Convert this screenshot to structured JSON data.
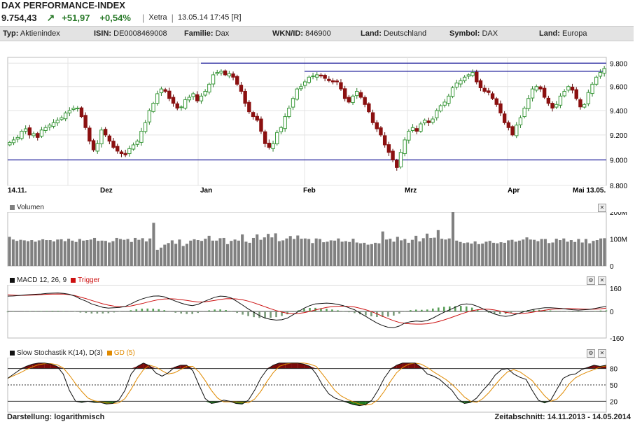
{
  "header": {
    "title": "DAX PERFORMANCE-INDEX",
    "last": "9.754,43",
    "change": "+51,97",
    "change_pct": "+0,54%",
    "exchange": "Xetra",
    "timestamp": "13.05.14 17:45 [R]"
  },
  "info": {
    "typ_label": "Typ:",
    "typ_value": "Aktienindex",
    "isin_label": "ISIN:",
    "isin_value": "DE0008469008",
    "familie_label": "Familie:",
    "familie_value": "Dax",
    "wkn_label": "WKN/ID:",
    "wkn_value": "846900",
    "land_label": "Land:",
    "land_value": "Deutschland",
    "symbol_label": "Symbol:",
    "symbol_value": "DAX",
    "land2_label": "Land:",
    "land2_value": "Europa"
  },
  "colors": {
    "up": "#3a9a3a",
    "down": "#8b1010",
    "hline": "#1c1c9a",
    "volume": "#808080",
    "macd": "#111111",
    "trigger": "#cc1010",
    "k": "#111111",
    "d": "#e08a00"
  },
  "panels": {
    "volume_title": "Volumen",
    "macd_title": "MACD 12, 26, 9",
    "trigger_title": "Trigger",
    "stoch_title": "Slow Stochastik K(14), D(3)",
    "gd_title": "GD (5)"
  },
  "footer": {
    "left": "Darstellung: logarithmisch",
    "right": "Zeitabschnitt: 14.11.2013 - 14.05.2014"
  },
  "chart_data": [
    {
      "type": "candlestick",
      "x_labels": [
        "14.11.",
        "Dez",
        "Jan",
        "Feb",
        "Mrz",
        "Apr",
        "Mai 13.05."
      ],
      "y_ticks": [
        "9.800",
        "9.600",
        "9.400",
        "9.200",
        "9.000",
        "8.800"
      ],
      "ylim": [
        8800,
        9850
      ],
      "scale": "log",
      "hlines": [
        9000,
        9730,
        9800
      ],
      "close": [
        9140,
        9160,
        9180,
        9230,
        9250,
        9200,
        9210,
        9180,
        9240,
        9260,
        9280,
        9300,
        9320,
        9340,
        9380,
        9400,
        9420,
        9420,
        9350,
        9260,
        9150,
        9080,
        9130,
        9240,
        9200,
        9150,
        9100,
        9070,
        9050,
        9040,
        9090,
        9120,
        9150,
        9230,
        9300,
        9400,
        9460,
        9540,
        9580,
        9560,
        9500,
        9460,
        9420,
        9430,
        9490,
        9510,
        9540,
        9480,
        9520,
        9560,
        9620,
        9700,
        9720,
        9730,
        9700,
        9710,
        9680,
        9620,
        9560,
        9460,
        9390,
        9350,
        9320,
        9230,
        9130,
        9100,
        9130,
        9220,
        9260,
        9350,
        9420,
        9500,
        9580,
        9600,
        9640,
        9680,
        9690,
        9700,
        9690,
        9670,
        9650,
        9640,
        9640,
        9580,
        9500,
        9470,
        9520,
        9560,
        9510,
        9450,
        9390,
        9300,
        9250,
        9200,
        9120,
        9060,
        9000,
        8940,
        9060,
        9160,
        9230,
        9260,
        9230,
        9290,
        9320,
        9300,
        9330,
        9400,
        9440,
        9470,
        9520,
        9590,
        9630,
        9650,
        9680,
        9700,
        9720,
        9640,
        9590,
        9560,
        9550,
        9500,
        9450,
        9380,
        9300,
        9260,
        9200,
        9280,
        9340,
        9420,
        9500,
        9580,
        9600,
        9580,
        9510,
        9460,
        9420,
        9450,
        9520,
        9560,
        9600,
        9570,
        9500,
        9430,
        9450,
        9550,
        9620,
        9680,
        9720,
        9754
      ]
    },
    {
      "type": "bar",
      "title": "Volumen",
      "y_ticks": [
        "200M",
        "100M",
        "0"
      ],
      "ylim": [
        0,
        200
      ],
      "values": [
        108,
        98,
        93,
        97,
        95,
        92,
        96,
        90,
        95,
        99,
        96,
        96,
        91,
        98,
        99,
        92,
        101,
        94,
        89,
        100,
        94,
        96,
        98,
        104,
        93,
        94,
        93,
        87,
        92,
        104,
        100,
        97,
        100,
        89,
        104,
        97,
        103,
        91,
        102,
        160,
        60,
        68,
        79,
        85,
        95,
        82,
        98,
        74,
        82,
        94,
        99,
        96,
        93,
        101,
        112,
        94,
        94,
        103,
        104,
        81,
        93,
        98,
        94,
        117,
        90,
        86,
        104,
        117,
        97,
        106,
        119,
        106,
        121,
        92,
        95,
        102,
        111,
        100,
        113,
        101,
        102,
        100,
        85,
        102,
        100,
        88,
        90,
        95,
        94,
        102,
        90,
        92,
        89,
        101,
        87,
        84,
        86,
        79,
        81,
        86,
        84,
        128,
        98,
        101,
        90,
        108,
        95,
        100,
        86,
        97,
        112,
        91,
        103,
        120,
        104,
        105,
        133,
        101,
        98,
        102,
        204,
        94,
        89,
        85,
        87,
        83,
        91,
        81,
        83,
        90,
        93,
        86,
        84,
        88,
        86,
        95,
        97,
        90,
        94,
        98,
        106,
        98,
        97,
        92,
        100,
        100,
        85,
        87,
        101,
        96,
        102,
        90,
        96,
        89,
        100,
        87,
        100,
        84,
        93,
        96,
        102,
        103
      ]
    },
    {
      "type": "line",
      "title": "MACD 12, 26, 9",
      "y_ticks": [
        "160",
        "0",
        "-160"
      ],
      "ylim": [
        -160,
        160
      ],
      "series": [
        {
          "name": "MACD",
          "values": [
            92,
            93,
            96,
            99,
            101,
            103,
            105,
            108,
            110,
            111,
            108,
            103,
            92,
            75,
            62,
            45,
            35,
            25,
            20,
            22,
            24,
            30,
            45,
            62,
            75,
            85,
            92,
            93,
            88,
            75,
            62,
            50,
            40,
            35,
            42,
            58,
            72,
            85,
            92,
            90,
            80,
            60,
            38,
            15,
            -5,
            -25,
            -40,
            -48,
            -52,
            -50,
            -40,
            -20,
            0,
            20,
            35,
            45,
            48,
            50,
            48,
            42,
            35,
            22,
            10,
            -10,
            -30,
            -50,
            -70,
            -85,
            -95,
            -98,
            -88,
            -70,
            -62,
            -58,
            -60,
            -55,
            -40,
            -22,
            -5,
            10,
            25,
            40,
            45,
            42,
            30,
            15,
            0,
            -15,
            -25,
            -30,
            -25,
            -15,
            -5,
            5,
            12,
            18,
            22,
            22,
            20,
            18,
            14,
            10,
            8,
            10,
            12,
            18,
            25,
            30
          ]
        },
        {
          "name": "Trigger",
          "values": [
            100,
            98,
            96,
            97,
            98,
            99,
            101,
            103,
            104,
            105,
            104,
            101,
            95,
            86,
            77,
            66,
            56,
            46,
            38,
            32,
            28,
            29,
            33,
            40,
            47,
            56,
            64,
            71,
            75,
            76,
            75,
            71,
            66,
            61,
            57,
            57,
            61,
            66,
            72,
            76,
            77,
            75,
            70,
            62,
            52,
            40,
            28,
            16,
            5,
            -4,
            -11,
            -14,
            -12,
            -7,
            0,
            9,
            17,
            24,
            29,
            31,
            32,
            30,
            27,
            19,
            10,
            -1,
            -14,
            -29,
            -43,
            -56,
            -66,
            -72,
            -75,
            -76,
            -76,
            -74,
            -69,
            -61,
            -51,
            -40,
            -28,
            -16,
            -5,
            4,
            10,
            14,
            13,
            9,
            2,
            -5,
            -10,
            -13,
            -12,
            -9,
            -4,
            2,
            7,
            12,
            15,
            16,
            17,
            17,
            15,
            14,
            13,
            14,
            16,
            20
          ]
        }
      ]
    },
    {
      "type": "line",
      "title": "Slow Stochastik K(14), D(3)",
      "y_ticks": [
        "80",
        "50",
        "20"
      ],
      "ylim": [
        0,
        100
      ],
      "hlines": [
        80,
        50,
        20
      ],
      "series": [
        {
          "name": "K(14)",
          "values": [
            62,
            70,
            78,
            84,
            88,
            90,
            90,
            88,
            84,
            70,
            40,
            20,
            18,
            20,
            18,
            18,
            15,
            16,
            22,
            40,
            70,
            84,
            90,
            85,
            72,
            66,
            72,
            82,
            86,
            86,
            76,
            50,
            25,
            16,
            18,
            22,
            20,
            16,
            15,
            22,
            40,
            62,
            78,
            86,
            90,
            90,
            90,
            90,
            88,
            84,
            70,
            50,
            34,
            26,
            22,
            18,
            14,
            12,
            14,
            22,
            40,
            62,
            78,
            86,
            90,
            90,
            90,
            82,
            70,
            66,
            60,
            50,
            40,
            24,
            16,
            18,
            26,
            40,
            52,
            68,
            78,
            80,
            70,
            64,
            60,
            40,
            22,
            17,
            22,
            42,
            62,
            68,
            70,
            78,
            82,
            86,
            84,
            86
          ]
        },
        {
          "name": "D(3)",
          "values": [
            62,
            67,
            72,
            78,
            83,
            87,
            89,
            89,
            87,
            81,
            68,
            52,
            38,
            26,
            21,
            19,
            17,
            16,
            17,
            25,
            42,
            62,
            78,
            86,
            83,
            76,
            70,
            72,
            78,
            84,
            84,
            74,
            58,
            40,
            26,
            19,
            19,
            19,
            18,
            17,
            24,
            38,
            56,
            72,
            84,
            88,
            90,
            90,
            90,
            88,
            84,
            70,
            55,
            40,
            30,
            24,
            19,
            15,
            13,
            15,
            23,
            38,
            56,
            72,
            82,
            88,
            90,
            88,
            82,
            74,
            67,
            60,
            51,
            40,
            28,
            20,
            18,
            25,
            36,
            50,
            63,
            74,
            78,
            74,
            66,
            58,
            44,
            30,
            20,
            24,
            36,
            52,
            63,
            69,
            74,
            78,
            83,
            85
          ]
        }
      ]
    }
  ]
}
